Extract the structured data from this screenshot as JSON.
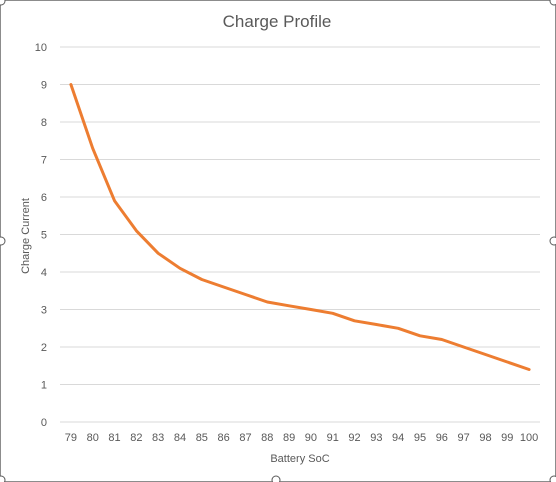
{
  "chart_data": {
    "type": "line",
    "title": "Charge Profile",
    "xlabel": "Battery SoC",
    "ylabel": "Charge Current",
    "ylim": [
      0,
      10
    ],
    "yticks": [
      "0",
      "1",
      "2",
      "3",
      "4",
      "5",
      "6",
      "7",
      "8",
      "9",
      "10"
    ],
    "categories": [
      "79",
      "80",
      "81",
      "82",
      "83",
      "84",
      "85",
      "86",
      "87",
      "88",
      "89",
      "90",
      "91",
      "92",
      "93",
      "94",
      "95",
      "96",
      "97",
      "98",
      "99",
      "100"
    ],
    "series": [
      {
        "values": [
          9.0,
          7.3,
          5.9,
          5.1,
          4.5,
          4.1,
          3.8,
          3.6,
          3.4,
          3.2,
          3.1,
          3.0,
          2.9,
          2.7,
          2.6,
          2.5,
          2.3,
          2.2,
          2.0,
          1.8,
          1.6,
          1.4
        ],
        "color": "#ED7D31"
      }
    ],
    "grid": true,
    "legend": "none"
  },
  "colors": {
    "gridline": "#D9D9D9",
    "text": "#595959",
    "frame": "#8C8C8C"
  }
}
